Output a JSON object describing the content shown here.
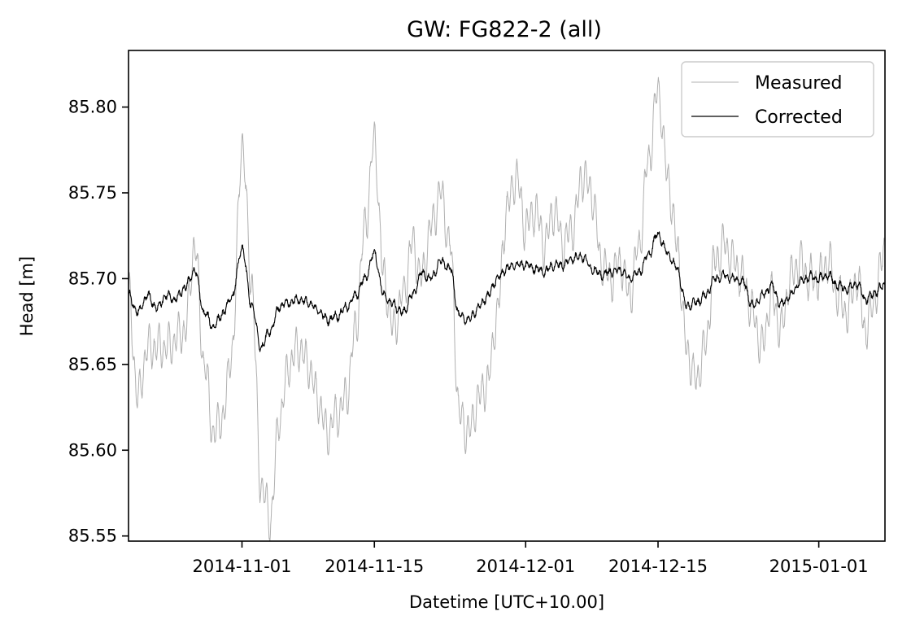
{
  "chart_data": {
    "type": "line",
    "title": "GW: FG822-2 (all)",
    "xlabel": "Datetime [UTC+10.00]",
    "ylabel": "Head [m]",
    "xlim": [
      "2014-10-20",
      "2015-01-08"
    ],
    "ylim": [
      85.547,
      85.833
    ],
    "yticks": [
      85.55,
      85.6,
      85.65,
      85.7,
      85.75,
      85.8
    ],
    "ytick_labels": [
      "85.55",
      "85.60",
      "85.65",
      "85.70",
      "85.75",
      "85.80"
    ],
    "xticks": [
      "2014-11-01",
      "2014-11-15",
      "2014-12-01",
      "2014-12-15",
      "2015-01-01"
    ],
    "xtick_labels": [
      "2014-11-01",
      "2014-11-15",
      "2014-12-01",
      "2014-12-15",
      "2015-01-01"
    ],
    "grid": false,
    "legend": "top-right",
    "series": [
      {
        "name": "Measured",
        "color": "#b0b0b0",
        "anchors": [
          [
            "2014-10-20",
            85.69
          ],
          [
            "2014-10-21",
            85.63
          ],
          [
            "2014-10-22",
            85.66
          ],
          [
            "2014-10-24",
            85.66
          ],
          [
            "2014-10-26",
            85.67
          ],
          [
            "2014-10-27",
            85.72
          ],
          [
            "2014-10-28",
            85.65
          ],
          [
            "2014-10-29",
            85.61
          ],
          [
            "2014-10-30",
            85.62
          ],
          [
            "2014-10-31",
            85.66
          ],
          [
            "2014-11-01",
            85.78
          ],
          [
            "2014-11-02",
            85.7
          ],
          [
            "2014-11-03",
            85.58
          ],
          [
            "2014-11-04",
            85.56
          ],
          [
            "2014-11-05",
            85.62
          ],
          [
            "2014-11-06",
            85.65
          ],
          [
            "2014-11-07",
            85.66
          ],
          [
            "2014-11-08",
            85.65
          ],
          [
            "2014-11-09",
            85.63
          ],
          [
            "2014-11-10",
            85.61
          ],
          [
            "2014-11-11",
            85.62
          ],
          [
            "2014-11-12",
            85.63
          ],
          [
            "2014-11-13",
            85.67
          ],
          [
            "2014-11-14",
            85.73
          ],
          [
            "2014-11-15",
            85.78
          ],
          [
            "2014-11-16",
            85.7
          ],
          [
            "2014-11-17",
            85.67
          ],
          [
            "2014-11-18",
            85.69
          ],
          [
            "2014-11-19",
            85.72
          ],
          [
            "2014-11-20",
            85.7
          ],
          [
            "2014-11-21",
            85.73
          ],
          [
            "2014-11-22",
            85.75
          ],
          [
            "2014-11-23",
            85.72
          ],
          [
            "2014-11-24",
            85.62
          ],
          [
            "2014-11-25",
            85.61
          ],
          [
            "2014-11-26",
            85.63
          ],
          [
            "2014-11-27",
            85.64
          ],
          [
            "2014-11-28",
            85.68
          ],
          [
            "2014-11-29",
            85.74
          ],
          [
            "2014-11-30",
            85.76
          ],
          [
            "2014-12-01",
            85.73
          ],
          [
            "2014-12-02",
            85.74
          ],
          [
            "2014-12-03",
            85.72
          ],
          [
            "2014-12-04",
            85.74
          ],
          [
            "2014-12-05",
            85.72
          ],
          [
            "2014-12-06",
            85.73
          ],
          [
            "2014-12-07",
            85.76
          ],
          [
            "2014-12-08",
            85.75
          ],
          [
            "2014-12-09",
            85.71
          ],
          [
            "2014-12-10",
            85.7
          ],
          [
            "2014-12-11",
            85.71
          ],
          [
            "2014-12-12",
            85.69
          ],
          [
            "2014-12-13",
            85.72
          ],
          [
            "2014-12-14",
            85.77
          ],
          [
            "2014-12-15",
            85.81
          ],
          [
            "2014-12-16",
            85.76
          ],
          [
            "2014-12-17",
            85.72
          ],
          [
            "2014-12-18",
            85.66
          ],
          [
            "2014-12-19",
            85.64
          ],
          [
            "2014-12-20",
            85.66
          ],
          [
            "2014-12-21",
            85.71
          ],
          [
            "2014-12-22",
            85.72
          ],
          [
            "2014-12-23",
            85.71
          ],
          [
            "2014-12-24",
            85.7
          ],
          [
            "2014-12-25",
            85.68
          ],
          [
            "2014-12-26",
            85.66
          ],
          [
            "2014-12-27",
            85.69
          ],
          [
            "2014-12-28",
            85.67
          ],
          [
            "2014-12-29",
            85.7
          ],
          [
            "2014-12-30",
            85.71
          ],
          [
            "2014-12-31",
            85.7
          ],
          [
            "2015-01-01",
            85.7
          ],
          [
            "2015-01-02",
            85.71
          ],
          [
            "2015-01-03",
            85.69
          ],
          [
            "2015-01-04",
            85.68
          ],
          [
            "2015-01-05",
            85.7
          ],
          [
            "2015-01-06",
            85.67
          ],
          [
            "2015-01-07",
            85.69
          ],
          [
            "2015-01-08",
            85.72
          ]
        ]
      },
      {
        "name": "Corrected",
        "color": "#000000",
        "anchors": [
          [
            "2014-10-20",
            85.69
          ],
          [
            "2014-10-21",
            85.68
          ],
          [
            "2014-10-22",
            85.69
          ],
          [
            "2014-10-23",
            85.683
          ],
          [
            "2014-10-24",
            85.69
          ],
          [
            "2014-10-25",
            85.688
          ],
          [
            "2014-10-26",
            85.695
          ],
          [
            "2014-10-27",
            85.705
          ],
          [
            "2014-10-28",
            85.68
          ],
          [
            "2014-10-29",
            85.672
          ],
          [
            "2014-10-30",
            85.68
          ],
          [
            "2014-10-31",
            85.69
          ],
          [
            "2014-11-01",
            85.718
          ],
          [
            "2014-11-02",
            85.685
          ],
          [
            "2014-11-03",
            85.66
          ],
          [
            "2014-11-04",
            85.67
          ],
          [
            "2014-11-05",
            85.684
          ],
          [
            "2014-11-06",
            85.686
          ],
          [
            "2014-11-07",
            85.688
          ],
          [
            "2014-11-08",
            85.686
          ],
          [
            "2014-11-09",
            85.682
          ],
          [
            "2014-11-10",
            85.676
          ],
          [
            "2014-11-11",
            85.678
          ],
          [
            "2014-11-12",
            85.683
          ],
          [
            "2014-11-13",
            85.69
          ],
          [
            "2014-11-14",
            85.7
          ],
          [
            "2014-11-15",
            85.715
          ],
          [
            "2014-11-16",
            85.69
          ],
          [
            "2014-11-17",
            85.685
          ],
          [
            "2014-11-18",
            85.68
          ],
          [
            "2014-11-19",
            85.69
          ],
          [
            "2014-11-20",
            85.703
          ],
          [
            "2014-11-21",
            85.7
          ],
          [
            "2014-11-22",
            85.71
          ],
          [
            "2014-11-23",
            85.706
          ],
          [
            "2014-11-24",
            85.678
          ],
          [
            "2014-11-25",
            85.676
          ],
          [
            "2014-11-26",
            85.683
          ],
          [
            "2014-11-27",
            85.69
          ],
          [
            "2014-11-28",
            85.7
          ],
          [
            "2014-11-29",
            85.706
          ],
          [
            "2014-11-30",
            85.708
          ],
          [
            "2014-12-01",
            85.708
          ],
          [
            "2014-12-02",
            85.706
          ],
          [
            "2014-12-03",
            85.704
          ],
          [
            "2014-12-04",
            85.708
          ],
          [
            "2014-12-05",
            85.708
          ],
          [
            "2014-12-06",
            85.712
          ],
          [
            "2014-12-07",
            85.713
          ],
          [
            "2014-12-08",
            85.706
          ],
          [
            "2014-12-09",
            85.702
          ],
          [
            "2014-12-10",
            85.704
          ],
          [
            "2014-12-11",
            85.705
          ],
          [
            "2014-12-12",
            85.7
          ],
          [
            "2014-12-13",
            85.704
          ],
          [
            "2014-12-14",
            85.714
          ],
          [
            "2014-12-15",
            85.726
          ],
          [
            "2014-12-16",
            85.715
          ],
          [
            "2014-12-17",
            85.706
          ],
          [
            "2014-12-18",
            85.684
          ],
          [
            "2014-12-19",
            85.686
          ],
          [
            "2014-12-20",
            85.69
          ],
          [
            "2014-12-21",
            85.7
          ],
          [
            "2014-12-22",
            85.702
          ],
          [
            "2014-12-23",
            85.7
          ],
          [
            "2014-12-24",
            85.698
          ],
          [
            "2014-12-25",
            85.684
          ],
          [
            "2014-12-26",
            85.69
          ],
          [
            "2014-12-27",
            85.696
          ],
          [
            "2014-12-28",
            85.685
          ],
          [
            "2014-12-29",
            85.69
          ],
          [
            "2014-12-30",
            85.698
          ],
          [
            "2014-12-31",
            85.701
          ],
          [
            "2015-01-01",
            85.7
          ],
          [
            "2015-01-02",
            85.702
          ],
          [
            "2015-01-03",
            85.696
          ],
          [
            "2015-01-04",
            85.694
          ],
          [
            "2015-01-05",
            85.697
          ],
          [
            "2015-01-06",
            85.688
          ],
          [
            "2015-01-07",
            85.692
          ],
          [
            "2015-01-08",
            85.697
          ]
        ]
      }
    ]
  }
}
